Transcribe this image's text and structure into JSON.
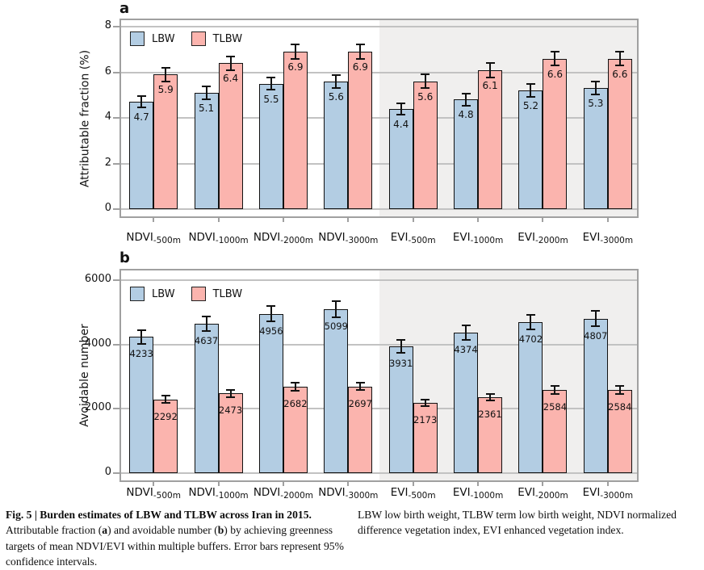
{
  "colors": {
    "lbw_fill": "#b3cde3",
    "tlbw_fill": "#fbb4ae",
    "bar_border": "#111111",
    "gridline": "#c2c2c2",
    "frame": "#a0a0a0",
    "evi_shading": "#f0efee",
    "text": "#111111"
  },
  "chart_data": [
    {
      "type": "bar",
      "panel_label": "a",
      "ylabel": "Attributable fraction (%)",
      "ylim": [
        0,
        8
      ],
      "yticks": [
        0,
        2,
        4,
        6,
        8
      ],
      "legend_position": "top-left-inside",
      "grid": true,
      "shaded_section_start_group": 4,
      "categories": [
        {
          "main": "NDVI",
          "sub": "-500m"
        },
        {
          "main": "NDVI",
          "sub": "-1000m"
        },
        {
          "main": "NDVI",
          "sub": "-2000m"
        },
        {
          "main": "NDVI",
          "sub": "-3000m"
        },
        {
          "main": "EVI",
          "sub": "-500m"
        },
        {
          "main": "EVI",
          "sub": "-1000m"
        },
        {
          "main": "EVI",
          "sub": "-2000m"
        },
        {
          "main": "EVI",
          "sub": "-3000m"
        }
      ],
      "series": [
        {
          "name": "LBW",
          "values": [
            4.7,
            5.1,
            5.5,
            5.6,
            4.4,
            4.8,
            5.2,
            5.3
          ],
          "errors": [
            0.25,
            0.27,
            0.27,
            0.28,
            0.25,
            0.26,
            0.28,
            0.28
          ]
        },
        {
          "name": "TLBW",
          "values": [
            5.9,
            6.4,
            6.9,
            6.9,
            5.6,
            6.1,
            6.6,
            6.6
          ],
          "errors": [
            0.3,
            0.3,
            0.32,
            0.33,
            0.3,
            0.32,
            0.3,
            0.3
          ]
        }
      ]
    },
    {
      "type": "bar",
      "panel_label": "b",
      "ylabel": "Avoidable number",
      "ylim": [
        0,
        6000
      ],
      "yticks": [
        0,
        2000,
        4000,
        6000
      ],
      "legend_position": "top-left-inside",
      "grid": true,
      "shaded_section_start_group": 4,
      "categories": [
        {
          "main": "NDVI",
          "sub": "-500m"
        },
        {
          "main": "NDVI",
          "sub": "-1000m"
        },
        {
          "main": "NDVI",
          "sub": "-2000m"
        },
        {
          "main": "NDVI",
          "sub": "-3000m"
        },
        {
          "main": "EVI",
          "sub": "-500m"
        },
        {
          "main": "EVI",
          "sub": "-1000m"
        },
        {
          "main": "EVI",
          "sub": "-2000m"
        },
        {
          "main": "EVI",
          "sub": "-3000m"
        }
      ],
      "series": [
        {
          "name": "LBW",
          "values": [
            4233,
            4637,
            4956,
            5099,
            3931,
            4374,
            4702,
            4807
          ],
          "errors": [
            220,
            230,
            240,
            250,
            200,
            220,
            230,
            240
          ]
        },
        {
          "name": "TLBW",
          "values": [
            2292,
            2473,
            2682,
            2697,
            2173,
            2361,
            2584,
            2584
          ],
          "errors": [
            110,
            115,
            120,
            120,
            100,
            110,
            115,
            115
          ]
        }
      ]
    }
  ],
  "caption": {
    "left_segments": [
      {
        "text": "Fig. 5 | Burden estimates of LBW and TLBW across Iran in 2015.",
        "bold": true
      },
      {
        "text": " Attributable fraction (",
        "bold": false
      },
      {
        "text": "a",
        "bold": true
      },
      {
        "text": ") and avoidable number (",
        "bold": false
      },
      {
        "text": "b",
        "bold": true
      },
      {
        "text": ") by achieving greenness targets of mean NDVI/EVI within multiple buffers. Error bars represent 95% confidence intervals.",
        "bold": false
      }
    ],
    "right": "LBW low birth weight, TLBW term low birth weight, NDVI normalized difference vegetation index, EVI enhanced vegetation index."
  }
}
